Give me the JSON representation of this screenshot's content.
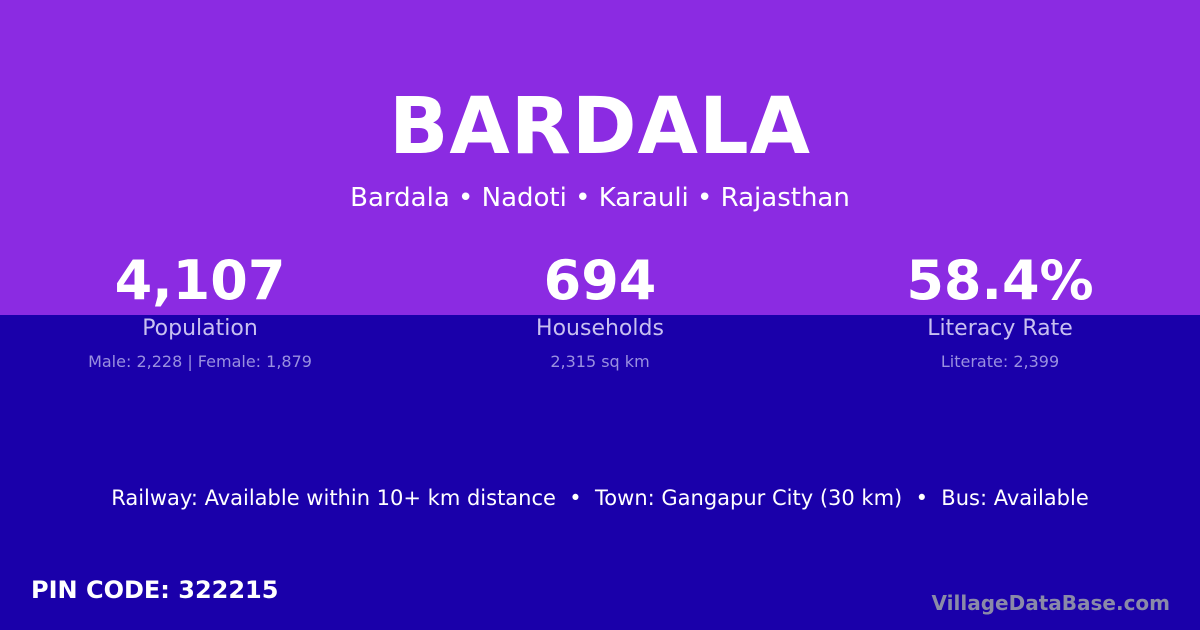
{
  "colors": {
    "top_bg": "#8b2be2",
    "bottom_bg": "#1a00aa"
  },
  "title": "BARDALA",
  "subtitle": "Bardala • Nadoti • Karauli • Rajasthan",
  "stats": [
    {
      "value": "4,107",
      "label": "Population",
      "detail": "Male: 2,228 | Female: 1,879"
    },
    {
      "value": "694",
      "label": "Households",
      "detail": "2,315 sq km"
    },
    {
      "value": "58.4%",
      "label": "Literacy Rate",
      "detail": "Literate: 2,399"
    }
  ],
  "info": "Railway: Available within 10+ km distance  •  Town: Gangapur City (30 km)  •  Bus: Available",
  "pin": "PIN CODE: 322215",
  "brand": "VillageDataBase.com"
}
